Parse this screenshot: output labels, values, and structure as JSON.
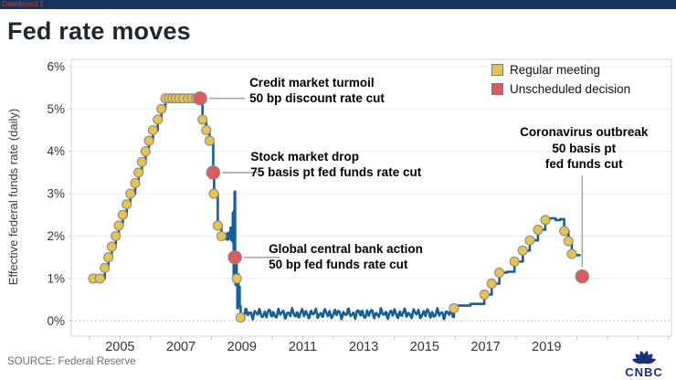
{
  "topbar": {
    "label": "Dashboard 1"
  },
  "header": {
    "title": "Fed rate moves"
  },
  "footer": {
    "source": "SOURCE: Federal Reserve",
    "logo_text": "CNBC"
  },
  "colors": {
    "line": "#175f97",
    "regular_dot": "#e9c34c",
    "unscheduled_dot": "#dc5b5e",
    "dot_stroke": "#8a8a8a",
    "grid": "#ebebeb",
    "zero_line": "#adadad",
    "border": "#d4d4d4",
    "tick_text": "#333333",
    "leader": "#a3a3a3",
    "cnbc_navy": "#1a2f7c"
  },
  "chart_data": {
    "type": "line",
    "title": "Fed rate moves",
    "xlabel": "",
    "ylabel": "Effective federal funds rate (daily)",
    "xlim": [
      2003.4,
      2023.1
    ],
    "ylim": [
      -0.36,
      6.17
    ],
    "grid": true,
    "x_ticks": [
      {
        "value": 2005,
        "label": "2005"
      },
      {
        "value": 2007,
        "label": "2007"
      },
      {
        "value": 2009,
        "label": "2009"
      },
      {
        "value": 2011,
        "label": "2011"
      },
      {
        "value": 2013,
        "label": "2013"
      },
      {
        "value": 2015,
        "label": "2015"
      },
      {
        "value": 2017,
        "label": "2017"
      },
      {
        "value": 2019,
        "label": "2019"
      }
    ],
    "y_ticks": [
      {
        "value": 0,
        "label": "0%"
      },
      {
        "value": 1,
        "label": "1%"
      },
      {
        "value": 2,
        "label": "2%"
      },
      {
        "value": 3,
        "label": "3%"
      },
      {
        "value": 4,
        "label": "4%"
      },
      {
        "value": 5,
        "label": "5%"
      },
      {
        "value": 6,
        "label": "6%"
      }
    ],
    "legend": [
      {
        "label": "Regular meeting",
        "color": "#e9c34c"
      },
      {
        "label": "Unscheduled decision",
        "color": "#dc5b5e"
      }
    ],
    "line_pre": [
      [
        2004.0,
        1.0
      ],
      [
        2004.5,
        1.25
      ],
      [
        2004.62,
        1.5
      ],
      [
        2004.73,
        1.75
      ],
      [
        2004.86,
        2.0
      ],
      [
        2004.96,
        2.25
      ],
      [
        2005.09,
        2.5
      ],
      [
        2005.22,
        2.75
      ],
      [
        2005.34,
        3.0
      ],
      [
        2005.5,
        3.25
      ],
      [
        2005.61,
        3.5
      ],
      [
        2005.72,
        3.75
      ],
      [
        2005.84,
        4.0
      ],
      [
        2005.95,
        4.25
      ],
      [
        2006.08,
        4.5
      ],
      [
        2006.24,
        4.75
      ],
      [
        2006.36,
        5.0
      ],
      [
        2006.49,
        5.25
      ],
      [
        2007.71,
        4.75
      ],
      [
        2007.83,
        4.5
      ],
      [
        2007.94,
        4.25
      ],
      [
        2008.06,
        3.5
      ],
      [
        2008.09,
        3.0
      ],
      [
        2008.21,
        2.25
      ],
      [
        2008.33,
        2.0
      ],
      [
        2008.4,
        1.95
      ],
      [
        2008.45,
        2.05
      ],
      [
        2008.5,
        1.92
      ],
      [
        2008.55,
        2.08
      ],
      [
        2008.6,
        1.95
      ],
      [
        2008.63,
        2.2
      ],
      [
        2008.65,
        1.9
      ],
      [
        2008.68,
        2.1
      ],
      [
        2008.7,
        2.55
      ],
      [
        2008.71,
        1.85
      ],
      [
        2008.72,
        2.3
      ],
      [
        2008.73,
        0.95
      ],
      [
        2008.74,
        2.6
      ],
      [
        2008.75,
        1.0
      ],
      [
        2008.76,
        3.05
      ],
      [
        2008.78,
        1.45
      ],
      [
        2008.79,
        0.85
      ],
      [
        2008.81,
        1.55
      ],
      [
        2008.83,
        1.0
      ],
      [
        2008.85,
        0.3
      ],
      [
        2008.87,
        1.1
      ],
      [
        2008.89,
        0.4
      ],
      [
        2008.91,
        0.8
      ],
      [
        2008.93,
        0.35
      ],
      [
        2008.96,
        0.12
      ]
    ],
    "noise_region": {
      "from": 2009.0,
      "to": 2015.93,
      "base": 0.17,
      "amp": 0.07
    },
    "line_post": [
      [
        2015.96,
        0.36
      ],
      [
        2016.5,
        0.4
      ],
      [
        2016.96,
        0.62
      ],
      [
        2017.2,
        0.88
      ],
      [
        2017.45,
        1.14
      ],
      [
        2017.7,
        1.16
      ],
      [
        2017.95,
        1.4
      ],
      [
        2018.22,
        1.66
      ],
      [
        2018.45,
        1.9
      ],
      [
        2018.72,
        2.15
      ],
      [
        2018.96,
        2.38
      ],
      [
        2019.1,
        2.42
      ],
      [
        2019.3,
        2.38
      ],
      [
        2019.45,
        2.4
      ],
      [
        2019.58,
        2.12
      ],
      [
        2019.72,
        1.88
      ],
      [
        2019.83,
        1.56
      ],
      [
        2020.0,
        1.55
      ],
      [
        2020.08,
        1.58
      ]
    ],
    "regular_meetings": [
      [
        2004.12,
        1.0
      ],
      [
        2004.34,
        1.0
      ],
      [
        2004.5,
        1.25
      ],
      [
        2004.62,
        1.5
      ],
      [
        2004.73,
        1.75
      ],
      [
        2004.86,
        2.0
      ],
      [
        2004.96,
        2.25
      ],
      [
        2005.09,
        2.5
      ],
      [
        2005.22,
        2.75
      ],
      [
        2005.34,
        3.0
      ],
      [
        2005.5,
        3.25
      ],
      [
        2005.61,
        3.5
      ],
      [
        2005.72,
        3.75
      ],
      [
        2005.84,
        4.0
      ],
      [
        2005.95,
        4.25
      ],
      [
        2006.08,
        4.5
      ],
      [
        2006.24,
        4.75
      ],
      [
        2006.36,
        5.0
      ],
      [
        2006.49,
        5.25
      ],
      [
        2006.61,
        5.25
      ],
      [
        2006.72,
        5.25
      ],
      [
        2006.83,
        5.25
      ],
      [
        2006.95,
        5.25
      ],
      [
        2007.08,
        5.25
      ],
      [
        2007.23,
        5.25
      ],
      [
        2007.36,
        5.25
      ],
      [
        2007.49,
        5.25
      ],
      [
        2007.6,
        5.25
      ],
      [
        2007.71,
        4.75
      ],
      [
        2007.83,
        4.5
      ],
      [
        2007.94,
        4.25
      ],
      [
        2008.08,
        3.0
      ],
      [
        2008.21,
        2.25
      ],
      [
        2008.33,
        2.0
      ],
      [
        2008.83,
        1.0
      ],
      [
        2008.96,
        0.08
      ],
      [
        2015.96,
        0.3
      ],
      [
        2016.96,
        0.62
      ],
      [
        2017.2,
        0.88
      ],
      [
        2017.45,
        1.14
      ],
      [
        2017.95,
        1.4
      ],
      [
        2018.22,
        1.66
      ],
      [
        2018.45,
        1.9
      ],
      [
        2018.72,
        2.15
      ],
      [
        2018.96,
        2.38
      ],
      [
        2019.58,
        2.12
      ],
      [
        2019.72,
        1.88
      ],
      [
        2019.83,
        1.58
      ]
    ],
    "unscheduled_decisions": [
      {
        "year": 2007.63,
        "rate": 5.25
      },
      {
        "year": 2008.06,
        "rate": 3.5
      },
      {
        "year": 2008.77,
        "rate": 1.5
      },
      {
        "year": 2020.17,
        "rate": 1.05
      }
    ],
    "annotations": [
      {
        "lines": [
          "Credit market turmoil",
          "50 bp discount rate cut"
        ],
        "year": 2007.63,
        "rate": 5.25,
        "align": "left",
        "leader": "h"
      },
      {
        "lines": [
          "Stock market drop",
          "75 basis pt fed funds rate cut"
        ],
        "year": 2008.06,
        "rate": 3.5,
        "align": "left",
        "leader": "h"
      },
      {
        "lines": [
          "Global central bank action",
          "50 bp fed funds rate cut"
        ],
        "year": 2008.77,
        "rate": 1.5,
        "align": "left",
        "leader": "h"
      },
      {
        "lines": [
          "Coronavirus outbreak",
          "50 basis pt",
          "fed funds cut"
        ],
        "year": 2020.17,
        "rate": 1.05,
        "align": "center",
        "leader": "v"
      }
    ]
  }
}
